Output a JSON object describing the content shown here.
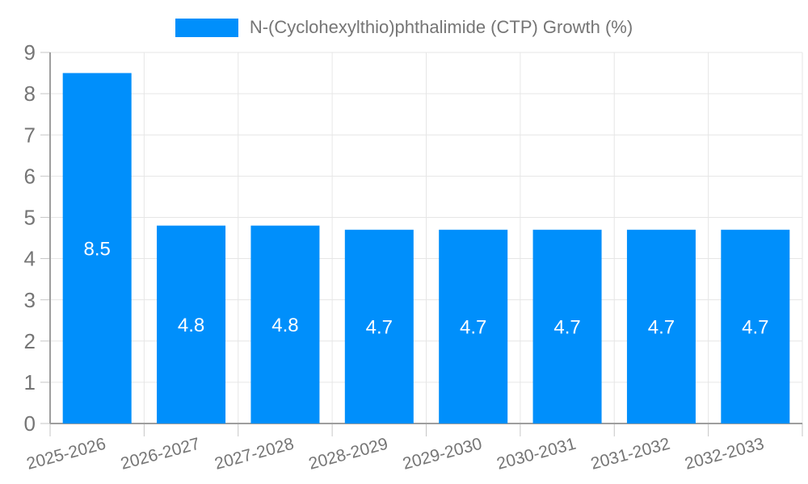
{
  "chart_data": {
    "type": "bar",
    "title": "N-(Cyclohexylthio)phthalimide (CTP) Growth (%)",
    "categories": [
      "2025-2026",
      "2026-2027",
      "2027-2028",
      "2028-2029",
      "2029-2030",
      "2030-2031",
      "2031-2032",
      "2032-2033"
    ],
    "values": [
      8.5,
      4.8,
      4.8,
      4.7,
      4.7,
      4.7,
      4.7,
      4.7
    ],
    "series_name": "N-(Cyclohexylthio)phthalimide (CTP) Growth (%)",
    "xlabel": "",
    "ylabel": "",
    "ylim": [
      0,
      9
    ],
    "yticks": [
      0,
      1,
      2,
      3,
      4,
      5,
      6,
      7,
      8,
      9
    ],
    "grid": true,
    "legend_position": "top",
    "data_labels": [
      "8.5",
      "4.8",
      "4.8",
      "4.7",
      "4.7",
      "4.7",
      "4.7",
      "4.7"
    ],
    "x_label_rotation_deg": -15
  },
  "style": {
    "bar_color": "#008FFB",
    "gridline_color": "#e6e6e6",
    "axis_color": "#9e9e9e",
    "tick_color": "#c6c6c6",
    "label_color": "#757575",
    "data_label_color": "#ffffff",
    "background_color": "#ffffff"
  }
}
